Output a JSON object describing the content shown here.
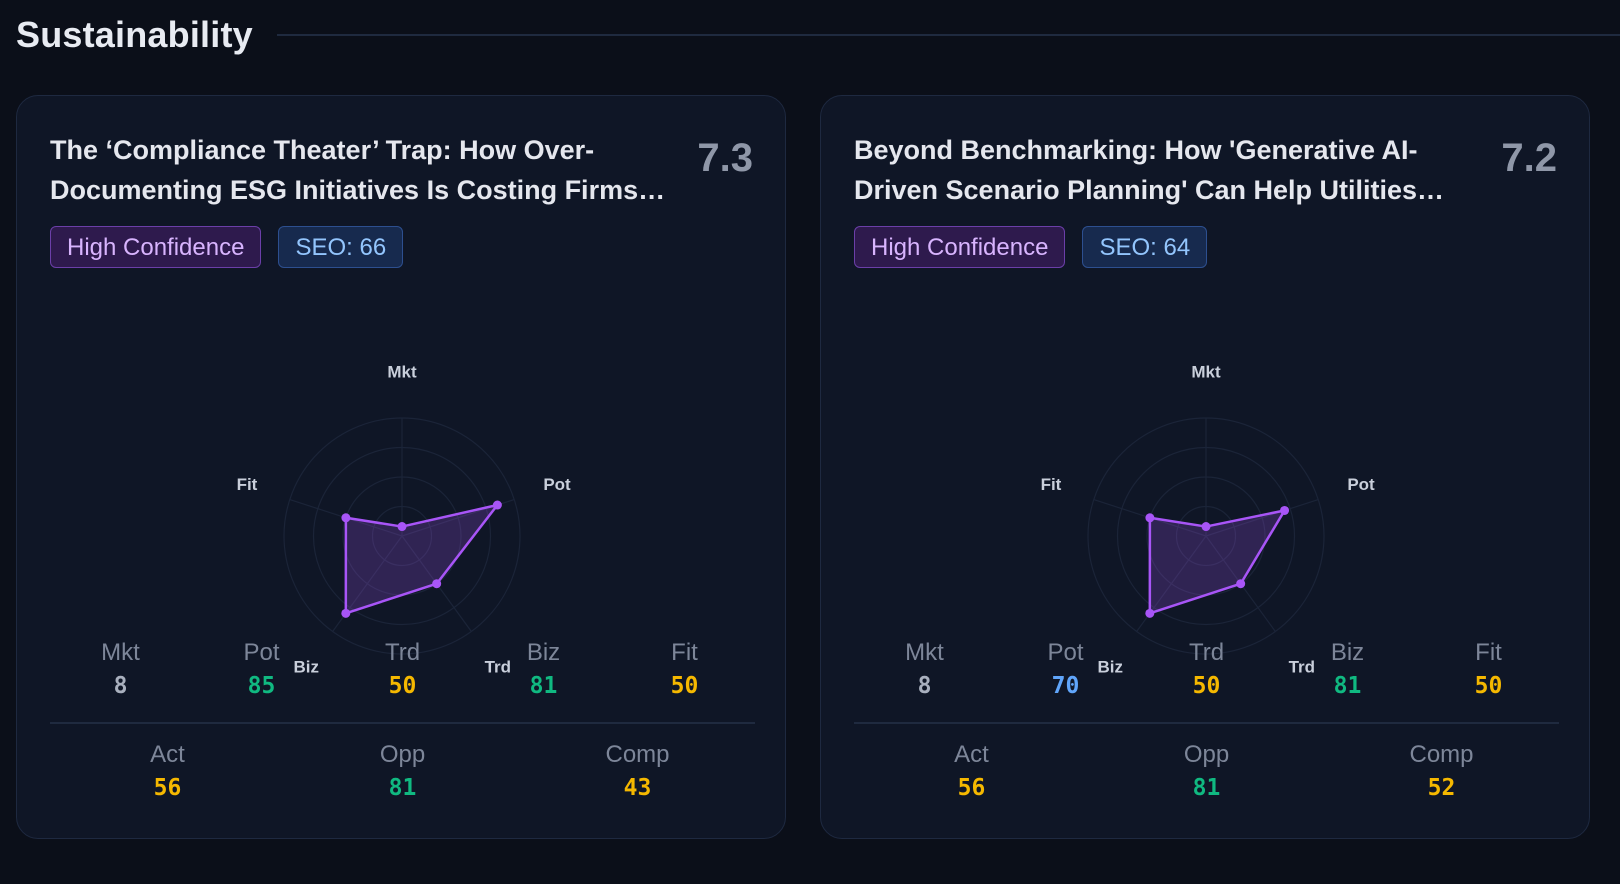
{
  "section": {
    "title": "Sustainability"
  },
  "colors": {
    "accent_purple": "#a855f7",
    "green": "#10b981",
    "yellow": "#f5b800",
    "blue": "#60a5fa",
    "gray": "#a9b0be"
  },
  "cards": [
    {
      "title": "The ‘Compliance Theater’ Trap: How Over-Documenting ESG Initiatives Is Costing Firms Millions",
      "score": "7.3",
      "badges": {
        "confidence": "High Confidence",
        "seo": "SEO: 66"
      },
      "radar": {
        "axes": [
          "Mkt",
          "Pot",
          "Trd",
          "Biz",
          "Fit"
        ],
        "values": [
          8,
          85,
          50,
          81,
          50
        ],
        "max": 100
      },
      "metrics": [
        {
          "label": "Mkt",
          "value": "8",
          "tone": "gray"
        },
        {
          "label": "Pot",
          "value": "85",
          "tone": "green"
        },
        {
          "label": "Trd",
          "value": "50",
          "tone": "yellow"
        },
        {
          "label": "Biz",
          "value": "81",
          "tone": "green"
        },
        {
          "label": "Fit",
          "value": "50",
          "tone": "yellow"
        }
      ],
      "summary": [
        {
          "label": "Act",
          "value": "56",
          "tone": "yellow"
        },
        {
          "label": "Opp",
          "value": "81",
          "tone": "green"
        },
        {
          "label": "Comp",
          "value": "43",
          "tone": "yellow"
        }
      ]
    },
    {
      "title": "Beyond Benchmarking: How 'Generative AI-Driven Scenario Planning' Can Help Utilities Navigate Climate Risk",
      "score": "7.2",
      "badges": {
        "confidence": "High Confidence",
        "seo": "SEO: 64"
      },
      "radar": {
        "axes": [
          "Mkt",
          "Pot",
          "Trd",
          "Biz",
          "Fit"
        ],
        "values": [
          8,
          70,
          50,
          81,
          50
        ],
        "max": 100
      },
      "metrics": [
        {
          "label": "Mkt",
          "value": "8",
          "tone": "gray"
        },
        {
          "label": "Pot",
          "value": "70",
          "tone": "blue"
        },
        {
          "label": "Trd",
          "value": "50",
          "tone": "yellow"
        },
        {
          "label": "Biz",
          "value": "81",
          "tone": "green"
        },
        {
          "label": "Fit",
          "value": "50",
          "tone": "yellow"
        }
      ],
      "summary": [
        {
          "label": "Act",
          "value": "56",
          "tone": "yellow"
        },
        {
          "label": "Opp",
          "value": "81",
          "tone": "green"
        },
        {
          "label": "Comp",
          "value": "52",
          "tone": "yellow"
        }
      ]
    }
  ]
}
